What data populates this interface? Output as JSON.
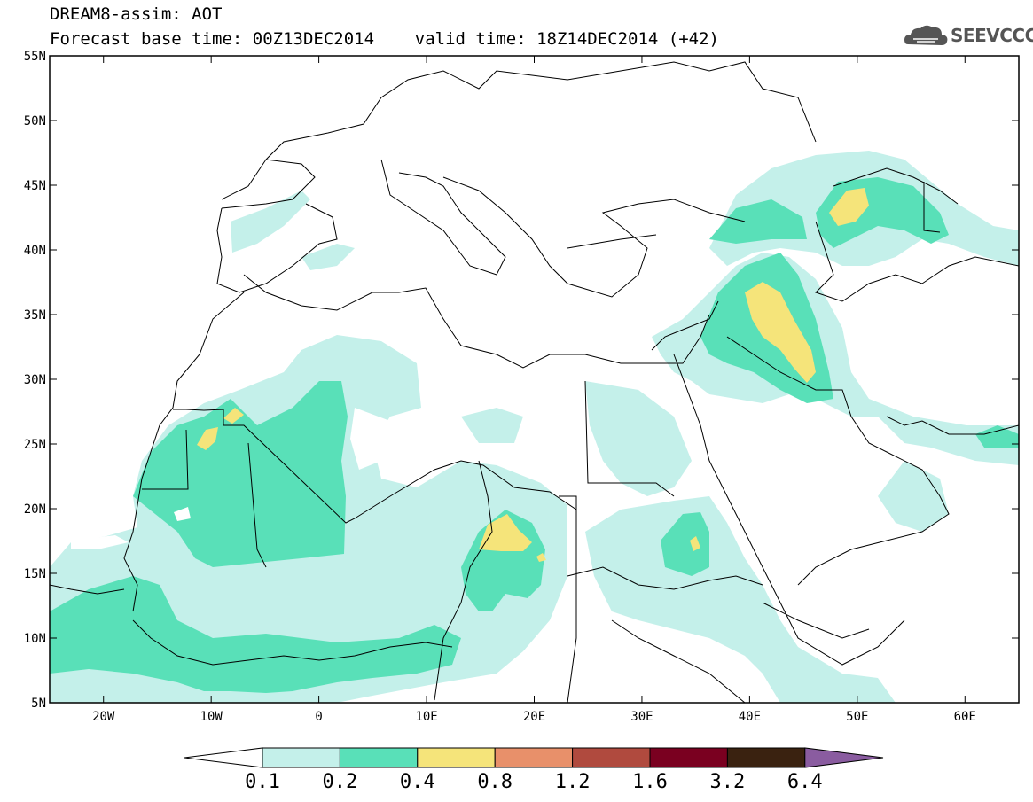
{
  "header": {
    "title": "DREAM8-assim: AOT",
    "subtitle": "Forecast base time: 00Z13DEC2014    valid time: 18Z14DEC2014 (+42)"
  },
  "logo": {
    "text": "SEEVCCC",
    "icon": "cloud-icon"
  },
  "map": {
    "lon_range": [
      -25,
      65
    ],
    "lat_range": [
      5,
      55
    ],
    "lon_ticks": [
      {
        "value": -20,
        "label": "20W"
      },
      {
        "value": -10,
        "label": "10W"
      },
      {
        "value": 0,
        "label": "0"
      },
      {
        "value": 10,
        "label": "10E"
      },
      {
        "value": 20,
        "label": "20E"
      },
      {
        "value": 30,
        "label": "30E"
      },
      {
        "value": 40,
        "label": "40E"
      },
      {
        "value": 50,
        "label": "50E"
      },
      {
        "value": 60,
        "label": "60E"
      }
    ],
    "lat_ticks": [
      {
        "value": 55,
        "label": "55N"
      },
      {
        "value": 50,
        "label": "50N"
      },
      {
        "value": 45,
        "label": "45N"
      },
      {
        "value": 40,
        "label": "40N"
      },
      {
        "value": 35,
        "label": "35N"
      },
      {
        "value": 30,
        "label": "30N"
      },
      {
        "value": 25,
        "label": "25N"
      },
      {
        "value": 20,
        "label": "20N"
      },
      {
        "value": 15,
        "label": "15N"
      },
      {
        "value": 10,
        "label": "10N"
      },
      {
        "value": 5,
        "label": "5N"
      }
    ]
  },
  "colorbar": {
    "colors": [
      "#ffffff",
      "#c4f0ea",
      "#59e0b8",
      "#f5e47a",
      "#e8906a",
      "#b04a3e",
      "#7a0020",
      "#3a2210",
      "#8a5ca0"
    ],
    "labels": [
      "0.1",
      "0.2",
      "0.4",
      "0.8",
      "1.2",
      "1.6",
      "3.2",
      "6.4"
    ]
  }
}
